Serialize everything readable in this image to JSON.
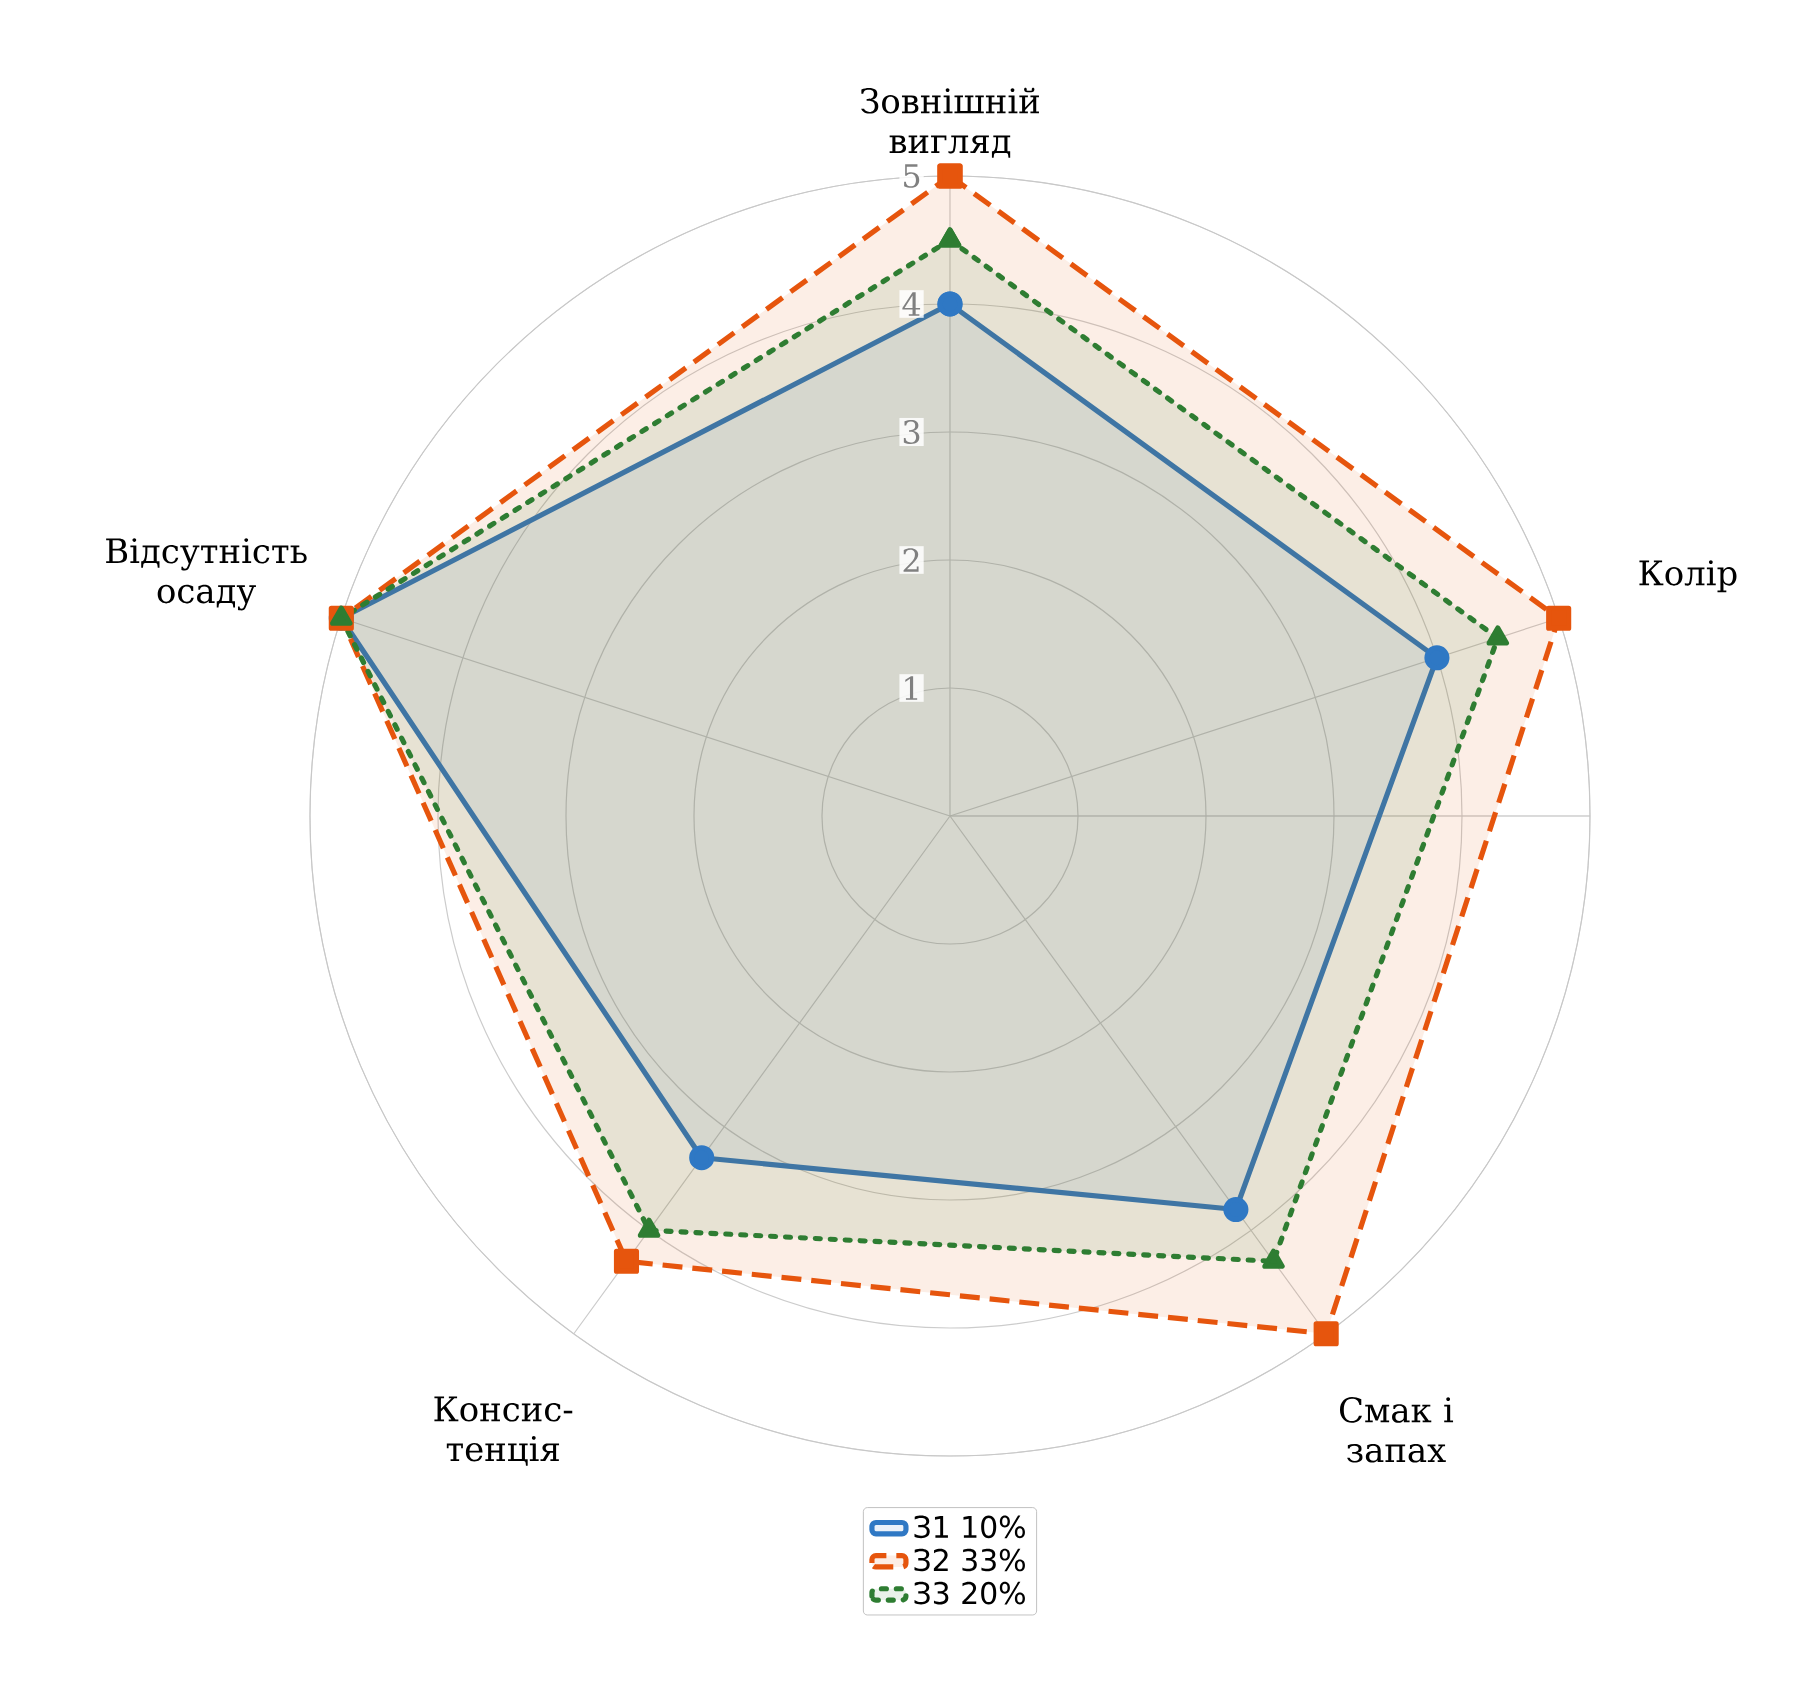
{
  "chart_data": {
    "type": "radar",
    "categories": [
      "Зовнішній вигляд",
      "Колір",
      "Смак і запах",
      "Консис-тенція",
      "Відсутність осаду"
    ],
    "ylim": [
      0,
      5
    ],
    "yticks": [
      1,
      2,
      3,
      4,
      5
    ],
    "grid": true,
    "legend": "bottom",
    "series": [
      {
        "name": "З1 10%",
        "color": "#2f78c4",
        "values": [
          4,
          4,
          3.8,
          3.3,
          5
        ],
        "marker": "circle",
        "line_style": "solid"
      },
      {
        "name": "З2 33%",
        "color": "#e6550d",
        "values": [
          5,
          5,
          5,
          4.3,
          5
        ],
        "marker": "square",
        "line_style": "dashed"
      },
      {
        "name": "З3 20%",
        "color": "#2e7d32",
        "values": [
          4.5,
          4.5,
          4.3,
          4,
          5
        ],
        "marker": "triangle",
        "line_style": "dotted"
      }
    ]
  }
}
